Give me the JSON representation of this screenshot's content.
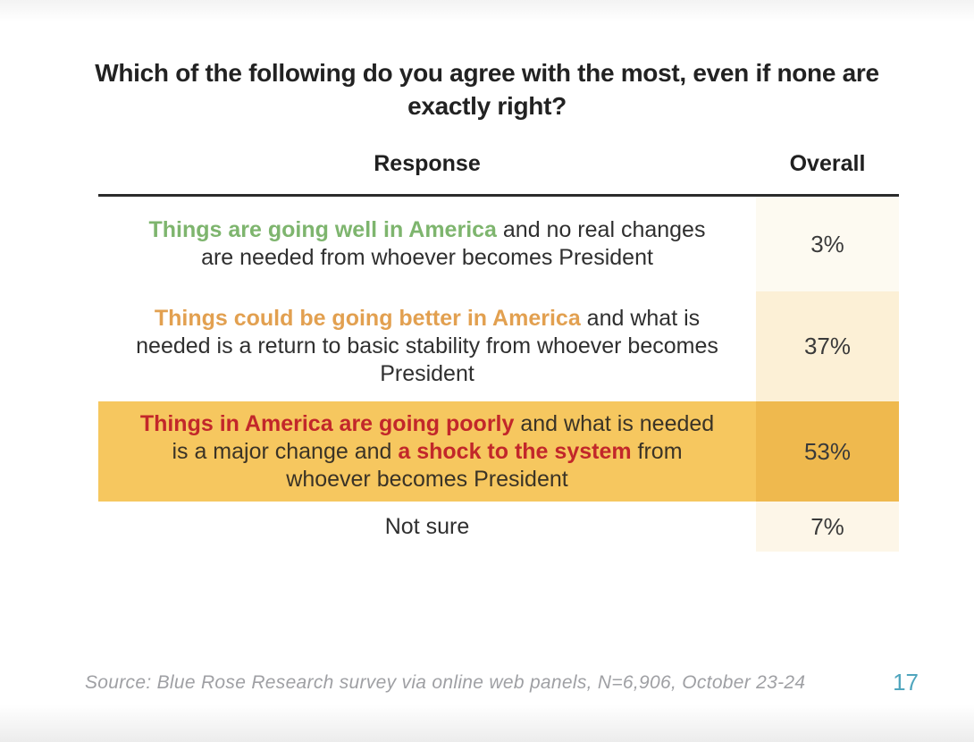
{
  "title": "Which of the following do you agree with the most, even if none are exactly right?",
  "table": {
    "response_header": "Response",
    "overall_header": "Overall",
    "rows": [
      {
        "overall": "3%",
        "segments": [
          {
            "text": "Things are going well in America",
            "style": "green-bold"
          },
          {
            "text": " and no real changes are needed from whoever becomes President",
            "style": "plain"
          }
        ]
      },
      {
        "overall": "37%",
        "segments": [
          {
            "text": "Things could be going better in America",
            "style": "orange-bold"
          },
          {
            "text": " and what is needed is a return to basic stability from whoever becomes President",
            "style": "plain"
          }
        ]
      },
      {
        "overall": "53%",
        "highlighted": true,
        "segments": [
          {
            "text": "Things in America are going poorly",
            "style": "red-bold"
          },
          {
            "text": " and what is needed is a major change and ",
            "style": "plain"
          },
          {
            "text": "a shock to the system",
            "style": "red-bold"
          },
          {
            "text": " from whoever becomes President",
            "style": "plain"
          }
        ]
      },
      {
        "overall": "7%",
        "segments": [
          {
            "text": "Not sure",
            "style": "plain"
          }
        ]
      }
    ]
  },
  "footer": {
    "source": "Source: Blue Rose Research survey via online web panels, N=6,906, October 23-24",
    "page_number": "17"
  },
  "colors": {
    "green": "#7eb56e",
    "orange": "#e2a050",
    "red": "#c2272a",
    "row_highlight_gold": "#f6c75f",
    "overall_gold": "#efb94e",
    "overall_cream": "#fcf0d6",
    "overall_faint_cream": "#fdfaf1",
    "overall_soft_cream": "#fdf6e8",
    "page_number_teal": "#4fa5bd"
  },
  "chart_data": {
    "type": "table",
    "title": "Which of the following do you agree with the most, even if none are exactly right?",
    "columns": [
      "Response",
      "Overall"
    ],
    "rows": [
      [
        "Things are going well in America and no real changes are needed from whoever becomes President",
        "3%"
      ],
      [
        "Things could be going better in America and what is needed is a return to basic stability from whoever becomes President",
        "37%"
      ],
      [
        "Things in America are going poorly and what is needed is a major change and a shock to the system from whoever becomes President",
        "53%"
      ],
      [
        "Not sure",
        "7%"
      ]
    ],
    "values": [
      3,
      37,
      53,
      7
    ],
    "highlighted_row_index": 2,
    "source": "Source: Blue Rose Research survey via online web panels, N=6,906, October 23-24",
    "page_number": "17"
  }
}
